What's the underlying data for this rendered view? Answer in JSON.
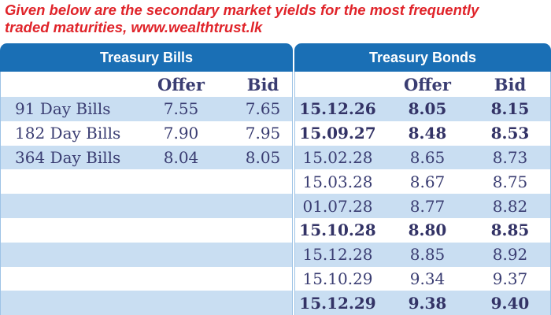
{
  "caption": {
    "line1": "Given below are the secondary market yields for the most frequently",
    "line2": "traded maturities, www.wealthtrust.lk"
  },
  "colors": {
    "caption": "#e0242a",
    "header_bg": "#1a6fb5",
    "row_shade": "#c9def2",
    "text": "#3a3d72"
  },
  "bills": {
    "title": "Treasury Bills",
    "col_offer": "Offer",
    "col_bid": "Bid",
    "rows": [
      {
        "name": "91 Day Bills",
        "offer": "7.55",
        "bid": "7.65"
      },
      {
        "name": "182 Day Bills",
        "offer": "7.90",
        "bid": "7.95"
      },
      {
        "name": "364 Day Bills",
        "offer": "8.04",
        "bid": "8.05"
      }
    ]
  },
  "bonds": {
    "title": "Treasury Bonds",
    "col_offer": "Offer",
    "col_bid": "Bid",
    "rows": [
      {
        "date": "15.12.26",
        "offer": "8.05",
        "bid": "8.15",
        "bold": true
      },
      {
        "date": "15.09.27",
        "offer": "8.48",
        "bid": "8.53",
        "bold": true
      },
      {
        "date": "15.02.28",
        "offer": "8.65",
        "bid": "8.73",
        "bold": false
      },
      {
        "date": "15.03.28",
        "offer": "8.67",
        "bid": "8.75",
        "bold": false
      },
      {
        "date": "01.07.28",
        "offer": "8.77",
        "bid": "8.82",
        "bold": false
      },
      {
        "date": "15.10.28",
        "offer": "8.80",
        "bid": "8.85",
        "bold": true
      },
      {
        "date": "15.12.28",
        "offer": "8.85",
        "bid": "8.92",
        "bold": false
      },
      {
        "date": "15.10.29",
        "offer": "9.34",
        "bid": "9.37",
        "bold": false
      },
      {
        "date": "15.12.29",
        "offer": "9.38",
        "bid": "9.40",
        "bold": true
      }
    ]
  }
}
